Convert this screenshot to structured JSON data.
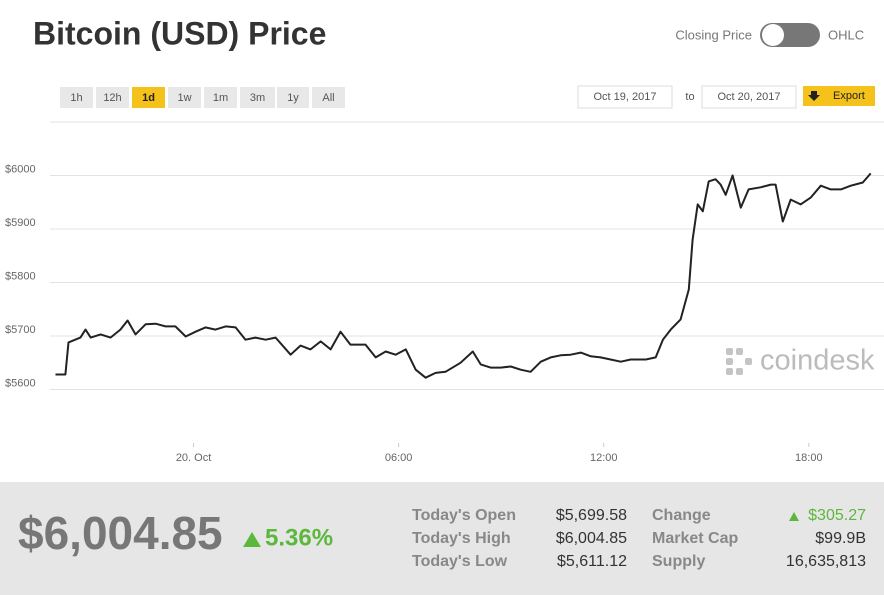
{
  "header": {
    "title": "Bitcoin (USD) Price",
    "toggle_left": "Closing Price",
    "toggle_right": "OHLC"
  },
  "controls": {
    "ranges": [
      "1h",
      "12h",
      "1d",
      "1w",
      "1m",
      "3m",
      "1y",
      "All"
    ],
    "selected": 2,
    "from": "Oct 19, 2017",
    "to_label": "to",
    "to": "Oct 20, 2017",
    "export": "Export"
  },
  "watermark": "coindesk",
  "chart_data": {
    "type": "line",
    "color": "#222222",
    "x": [
      -4.04,
      -3.75,
      -3.66,
      -3.31,
      -3.16,
      -3.01,
      -2.72,
      -2.43,
      -2.14,
      -1.93,
      -1.7,
      -1.4,
      -1.11,
      -0.82,
      -0.53,
      -0.23,
      0.06,
      0.35,
      0.64,
      0.94,
      1.23,
      1.52,
      1.81,
      2.11,
      2.4,
      2.84,
      3.13,
      3.42,
      3.72,
      4.01,
      4.3,
      4.59,
      5.03,
      5.33,
      5.62,
      5.91,
      6.21,
      6.5,
      6.79,
      7.08,
      7.37,
      7.81,
      8.17,
      8.4,
      8.69,
      8.98,
      9.28,
      9.57,
      9.86,
      10.16,
      10.45,
      10.74,
      11.03,
      11.33,
      11.62,
      11.91,
      12.2,
      12.5,
      12.79,
      13.23,
      13.52,
      13.73,
      13.96,
      14.25,
      14.49,
      14.6,
      14.75,
      14.9,
      15.07,
      15.27,
      15.42,
      15.57,
      15.77,
      16.01,
      16.24,
      16.59,
      16.89,
      17.03,
      17.24,
      17.47,
      17.76,
      18.06,
      18.35,
      18.64,
      18.94,
      19.23,
      19.58,
      19.81
    ],
    "values": [
      5628,
      5628,
      5688,
      5697,
      5712,
      5697,
      5703,
      5697,
      5712,
      5729,
      5703,
      5722,
      5723,
      5718,
      5718,
      5699,
      5708,
      5716,
      5712,
      5718,
      5716,
      5693,
      5697,
      5693,
      5697,
      5665,
      5682,
      5675,
      5690,
      5675,
      5708,
      5684,
      5684,
      5660,
      5671,
      5665,
      5675,
      5637,
      5622,
      5631,
      5633,
      5650,
      5671,
      5647,
      5641,
      5641,
      5643,
      5637,
      5633,
      5652,
      5660,
      5664,
      5665,
      5669,
      5662,
      5660,
      5656,
      5652,
      5656,
      5656,
      5660,
      5693,
      5712,
      5731,
      5787,
      5880,
      5946,
      5933,
      5989,
      5993,
      5983,
      5964,
      6000,
      5940,
      5974,
      5978,
      5983,
      5983,
      5914,
      5955,
      5946,
      5959,
      5981,
      5974,
      5974,
      5981,
      5987,
      6004
    ],
    "xlim": [
      -4.2,
      20.2
    ],
    "xticks": [
      {
        "value": 0,
        "label": "20. Oct"
      },
      {
        "value": 6,
        "label": "06:00"
      },
      {
        "value": 12,
        "label": "12:00"
      },
      {
        "value": 18,
        "label": "18:00"
      }
    ],
    "ylim": [
      5500,
      6100
    ],
    "yticks": [
      {
        "value": 5600,
        "label": "$5600"
      },
      {
        "value": 5700,
        "label": "$5700"
      },
      {
        "value": 5800,
        "label": "$5800"
      },
      {
        "value": 5900,
        "label": "$5900"
      },
      {
        "value": 6000,
        "label": "$6000"
      }
    ],
    "grid": true
  },
  "summary": {
    "price": "$6,004.85",
    "change_pct": "5.36%",
    "stats": [
      [
        "Today's Open",
        "$5,699.58",
        "Change",
        "$305.27"
      ],
      [
        "Today's High",
        "$6,004.85",
        "Market Cap",
        "$99.9B"
      ],
      [
        "Today's Low",
        "$5,611.12",
        "Supply",
        "16,635,813"
      ]
    ]
  }
}
